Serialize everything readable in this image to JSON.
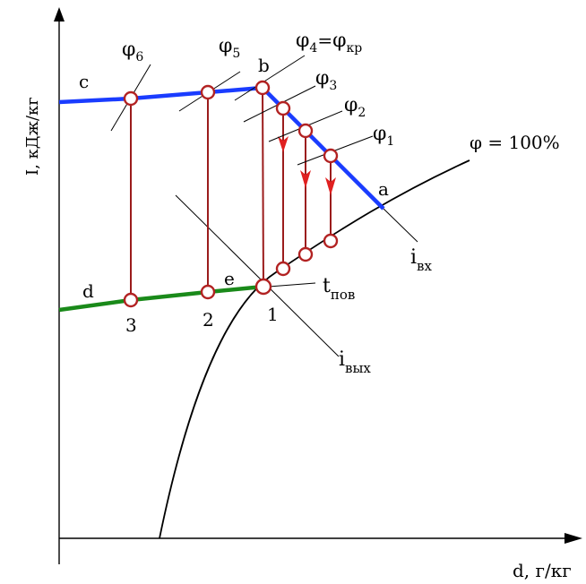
{
  "axes": {
    "y_label": "I, кДж/кг",
    "x_label": "d, г/кг"
  },
  "curves": {
    "saturation_label": "φ  = 100%",
    "inlet_enthalpy": {
      "main": "i",
      "sub": "вх"
    },
    "outlet_enthalpy": {
      "main": "i",
      "sub": "вых"
    },
    "surface_temp": {
      "main": "t",
      "sub": "пов"
    }
  },
  "points": {
    "a": "a",
    "b": "b",
    "c": "c",
    "d": "d",
    "e": "e",
    "p1": "1",
    "p2": "2",
    "p3": "3"
  },
  "phi": {
    "symbol": "φ",
    "phi1_sub": "1",
    "phi2_sub": "2",
    "phi3_sub": "3",
    "phi4_sub": "4",
    "phi4_eq": "=",
    "phi_kr_sub": "кр",
    "phi5_sub": "5",
    "phi6_sub": "6"
  },
  "colors": {
    "blue_line": "#1a3cff",
    "green_line": "#1a8a1a",
    "process_lines": "#9b1c1c",
    "arrows": "#e02020"
  }
}
